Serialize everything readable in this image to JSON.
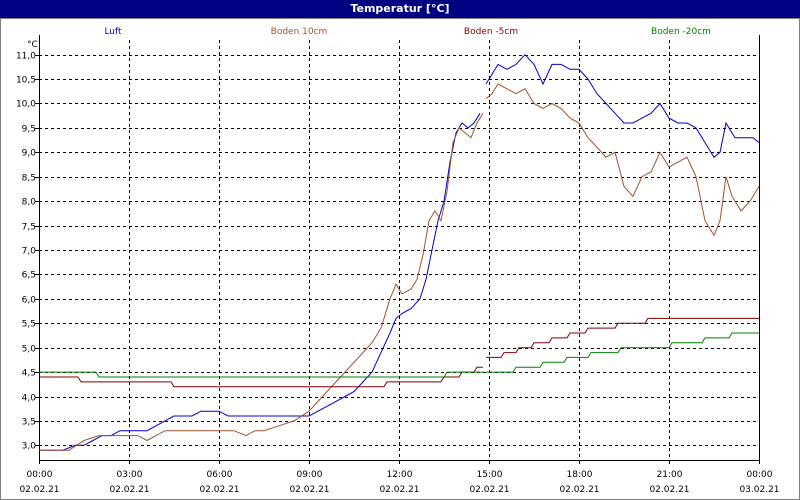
{
  "chart_data": {
    "type": "line",
    "title": "Temperatur [°C]",
    "ylabel": "°C",
    "ylim": [
      2.7,
      11.3
    ],
    "yticks": [
      "3,0",
      "3,5",
      "4,0",
      "4,5",
      "5,0",
      "5,5",
      "6,0",
      "6,5",
      "7,0",
      "7,5",
      "8,0",
      "8,5",
      "9,0",
      "9,5",
      "10,0",
      "10,5",
      "11,0"
    ],
    "xlim": [
      0,
      24
    ],
    "xticks": [
      {
        "time": "00:00",
        "date": "02.02.21"
      },
      {
        "time": "03:00",
        "date": "02.02.21"
      },
      {
        "time": "06:00",
        "date": "02.02.21"
      },
      {
        "time": "09:00",
        "date": "02.02.21"
      },
      {
        "time": "12:00",
        "date": "02.02.21"
      },
      {
        "time": "15:00",
        "date": "02.02.21"
      },
      {
        "time": "18:00",
        "date": "02.02.21"
      },
      {
        "time": "21:00",
        "date": "02.02.21"
      },
      {
        "time": "00:00",
        "date": "03.02.21"
      }
    ],
    "grid": true,
    "legend_position": "top",
    "series": [
      {
        "name": "Luft",
        "color": "#0000cc",
        "segments": [
          [
            [
              0,
              2.9
            ],
            [
              0.4,
              2.9
            ],
            [
              0.8,
              2.9
            ],
            [
              1.2,
              3.0
            ],
            [
              1.5,
              3.0
            ],
            [
              1.8,
              3.1
            ],
            [
              2.1,
              3.2
            ],
            [
              2.4,
              3.2
            ],
            [
              2.7,
              3.3
            ],
            [
              3.0,
              3.3
            ],
            [
              3.3,
              3.3
            ],
            [
              3.6,
              3.3
            ],
            [
              3.9,
              3.4
            ],
            [
              4.2,
              3.5
            ],
            [
              4.5,
              3.6
            ],
            [
              4.8,
              3.6
            ],
            [
              5.1,
              3.6
            ],
            [
              5.4,
              3.7
            ],
            [
              5.7,
              3.7
            ],
            [
              6.0,
              3.7
            ],
            [
              6.3,
              3.6
            ],
            [
              6.6,
              3.6
            ],
            [
              6.9,
              3.6
            ],
            [
              7.2,
              3.6
            ],
            [
              7.5,
              3.6
            ],
            [
              7.8,
              3.6
            ],
            [
              8.1,
              3.6
            ],
            [
              8.4,
              3.6
            ],
            [
              8.7,
              3.6
            ],
            [
              9.0,
              3.6
            ],
            [
              9.3,
              3.7
            ],
            [
              9.6,
              3.8
            ],
            [
              9.9,
              3.9
            ],
            [
              10.2,
              4.0
            ],
            [
              10.5,
              4.1
            ],
            [
              10.8,
              4.3
            ],
            [
              11.1,
              4.5
            ],
            [
              11.4,
              4.9
            ],
            [
              11.7,
              5.3
            ],
            [
              11.9,
              5.6
            ],
            [
              12.1,
              5.7
            ],
            [
              12.4,
              5.8
            ],
            [
              12.7,
              6.0
            ],
            [
              12.9,
              6.4
            ],
            [
              13.1,
              7.0
            ],
            [
              13.3,
              7.6
            ],
            [
              13.5,
              8.0
            ],
            [
              13.7,
              8.8
            ],
            [
              13.9,
              9.4
            ],
            [
              14.1,
              9.6
            ],
            [
              14.3,
              9.5
            ],
            [
              14.5,
              9.6
            ],
            [
              14.7,
              9.8
            ]
          ],
          [
            [
              14.9,
              10.4
            ],
            [
              15.1,
              10.6
            ],
            [
              15.3,
              10.8
            ],
            [
              15.6,
              10.7
            ],
            [
              15.9,
              10.8
            ],
            [
              16.2,
              11.0
            ],
            [
              16.5,
              10.8
            ],
            [
              16.8,
              10.4
            ],
            [
              17.1,
              10.8
            ],
            [
              17.4,
              10.8
            ],
            [
              17.7,
              10.7
            ],
            [
              18.0,
              10.7
            ],
            [
              18.3,
              10.5
            ],
            [
              18.6,
              10.2
            ],
            [
              18.9,
              10.0
            ],
            [
              19.2,
              9.8
            ],
            [
              19.5,
              9.6
            ],
            [
              19.8,
              9.6
            ],
            [
              20.1,
              9.7
            ],
            [
              20.4,
              9.8
            ],
            [
              20.7,
              10.0
            ],
            [
              21.0,
              9.7
            ],
            [
              21.3,
              9.6
            ],
            [
              21.6,
              9.6
            ],
            [
              21.9,
              9.5
            ],
            [
              22.2,
              9.2
            ],
            [
              22.5,
              8.9
            ],
            [
              22.7,
              9.0
            ],
            [
              22.9,
              9.6
            ],
            [
              23.2,
              9.3
            ],
            [
              23.5,
              9.3
            ],
            [
              23.8,
              9.3
            ],
            [
              24.0,
              9.2
            ]
          ]
        ]
      },
      {
        "name": "Boden 10cm",
        "color": "#a0522d",
        "segments": [
          [
            [
              0,
              2.9
            ],
            [
              0.5,
              2.9
            ],
            [
              1.0,
              2.9
            ],
            [
              1.5,
              3.1
            ],
            [
              2.0,
              3.2
            ],
            [
              2.5,
              3.2
            ],
            [
              3.0,
              3.2
            ],
            [
              3.3,
              3.2
            ],
            [
              3.6,
              3.1
            ],
            [
              3.9,
              3.2
            ],
            [
              4.2,
              3.3
            ],
            [
              4.5,
              3.3
            ],
            [
              5.0,
              3.3
            ],
            [
              5.5,
              3.3
            ],
            [
              6.0,
              3.3
            ],
            [
              6.5,
              3.3
            ],
            [
              6.9,
              3.2
            ],
            [
              7.2,
              3.3
            ],
            [
              7.5,
              3.3
            ],
            [
              8.0,
              3.4
            ],
            [
              8.5,
              3.5
            ],
            [
              9.0,
              3.7
            ],
            [
              9.3,
              3.9
            ],
            [
              9.6,
              4.1
            ],
            [
              9.9,
              4.3
            ],
            [
              10.2,
              4.5
            ],
            [
              10.5,
              4.7
            ],
            [
              10.8,
              4.9
            ],
            [
              11.1,
              5.1
            ],
            [
              11.4,
              5.4
            ],
            [
              11.7,
              6.0
            ],
            [
              11.9,
              6.3
            ],
            [
              12.1,
              6.1
            ],
            [
              12.4,
              6.2
            ],
            [
              12.6,
              6.4
            ],
            [
              12.8,
              6.9
            ],
            [
              13.0,
              7.6
            ],
            [
              13.2,
              7.8
            ],
            [
              13.4,
              7.6
            ],
            [
              13.6,
              8.2
            ],
            [
              13.8,
              9.2
            ],
            [
              14.0,
              9.5
            ],
            [
              14.2,
              9.4
            ],
            [
              14.4,
              9.3
            ],
            [
              14.6,
              9.6
            ],
            [
              14.8,
              9.8
            ]
          ],
          [
            [
              14.9,
              10.1
            ],
            [
              15.1,
              10.2
            ],
            [
              15.3,
              10.4
            ],
            [
              15.6,
              10.3
            ],
            [
              15.9,
              10.2
            ],
            [
              16.2,
              10.3
            ],
            [
              16.5,
              10.0
            ],
            [
              16.8,
              9.9
            ],
            [
              17.1,
              10.0
            ],
            [
              17.4,
              9.9
            ],
            [
              17.7,
              9.7
            ],
            [
              18.0,
              9.6
            ],
            [
              18.3,
              9.3
            ],
            [
              18.6,
              9.1
            ],
            [
              18.9,
              8.9
            ],
            [
              19.2,
              9.0
            ],
            [
              19.5,
              8.3
            ],
            [
              19.8,
              8.1
            ],
            [
              20.1,
              8.5
            ],
            [
              20.4,
              8.6
            ],
            [
              20.7,
              9.0
            ],
            [
              21.0,
              8.7
            ],
            [
              21.3,
              8.8
            ],
            [
              21.6,
              8.9
            ],
            [
              21.9,
              8.5
            ],
            [
              22.2,
              7.6
            ],
            [
              22.5,
              7.3
            ],
            [
              22.7,
              7.6
            ],
            [
              22.9,
              8.5
            ],
            [
              23.1,
              8.1
            ],
            [
              23.4,
              7.8
            ],
            [
              23.7,
              8.0
            ],
            [
              24.0,
              8.3
            ]
          ]
        ]
      },
      {
        "name": "Boden -5cm",
        "color": "#800000",
        "segments": [
          [
            [
              0,
              4.4
            ],
            [
              1.3,
              4.4
            ],
            [
              1.4,
              4.3
            ],
            [
              4.4,
              4.3
            ],
            [
              4.5,
              4.2
            ],
            [
              11.5,
              4.2
            ],
            [
              11.6,
              4.3
            ],
            [
              13.4,
              4.3
            ],
            [
              13.5,
              4.4
            ],
            [
              14.0,
              4.4
            ],
            [
              14.1,
              4.5
            ],
            [
              14.5,
              4.5
            ],
            [
              14.6,
              4.6
            ],
            [
              14.8,
              4.6
            ]
          ],
          [
            [
              14.9,
              4.8
            ],
            [
              15.4,
              4.8
            ],
            [
              15.5,
              4.9
            ],
            [
              15.9,
              4.9
            ],
            [
              16.0,
              5.0
            ],
            [
              16.4,
              5.0
            ],
            [
              16.5,
              5.1
            ],
            [
              17.0,
              5.1
            ],
            [
              17.1,
              5.2
            ],
            [
              17.6,
              5.2
            ],
            [
              17.7,
              5.3
            ],
            [
              18.2,
              5.3
            ],
            [
              18.3,
              5.4
            ],
            [
              19.2,
              5.4
            ],
            [
              19.3,
              5.5
            ],
            [
              20.2,
              5.5
            ],
            [
              20.3,
              5.6
            ],
            [
              24.0,
              5.6
            ]
          ]
        ]
      },
      {
        "name": "Boden -20cm",
        "color": "#008000",
        "segments": [
          [
            [
              0,
              4.5
            ],
            [
              1.9,
              4.5
            ],
            [
              2.0,
              4.4
            ],
            [
              13.5,
              4.4
            ],
            [
              13.6,
              4.5
            ],
            [
              14.8,
              4.5
            ]
          ],
          [
            [
              14.9,
              4.5
            ],
            [
              15.8,
              4.5
            ],
            [
              15.9,
              4.6
            ],
            [
              16.7,
              4.6
            ],
            [
              16.8,
              4.7
            ],
            [
              17.5,
              4.7
            ],
            [
              17.6,
              4.8
            ],
            [
              18.3,
              4.8
            ],
            [
              18.4,
              4.9
            ],
            [
              19.3,
              4.9
            ],
            [
              19.4,
              5.0
            ],
            [
              21.0,
              5.0
            ],
            [
              21.1,
              5.1
            ],
            [
              22.1,
              5.1
            ],
            [
              22.2,
              5.2
            ],
            [
              23.0,
              5.2
            ],
            [
              23.1,
              5.3
            ],
            [
              24.0,
              5.3
            ]
          ]
        ]
      }
    ]
  }
}
